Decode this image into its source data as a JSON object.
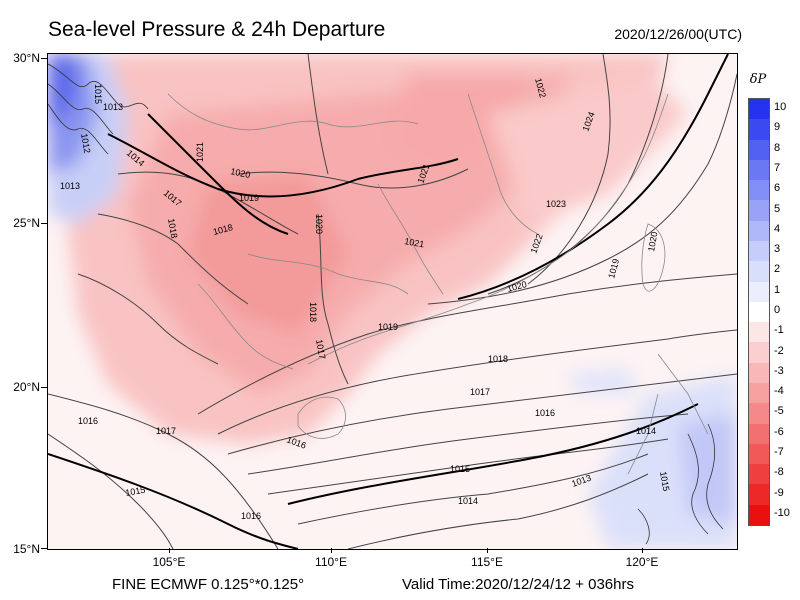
{
  "title": "Sea-level Pressure & 24h Departure",
  "datetime": "2020/12/26/00(UTC)",
  "footer": {
    "model": "FINE ECMWF 0.125°*0.125°",
    "valid": "Valid Time:2020/12/24/12 + 036hrs"
  },
  "axes": {
    "lat_labels": [
      "30°N",
      "25°N",
      "20°N",
      "15°N"
    ],
    "lon_labels": [
      "105°E",
      "110°E",
      "115°E",
      "120°E"
    ]
  },
  "colorbar": {
    "title": "δP",
    "labels": [
      "10",
      "9",
      "8",
      "7",
      "6",
      "5",
      "4",
      "3",
      "2",
      "1",
      "0",
      "-1",
      "-2",
      "-3",
      "-4",
      "-5",
      "-6",
      "-7",
      "-8",
      "-9",
      "-10"
    ],
    "colors": [
      "#2433f0",
      "#3a49f0",
      "#5261f2",
      "#6a78f3",
      "#818ef5",
      "#98a3f7",
      "#afb8f8",
      "#c5cdfa",
      "#d9defb",
      "#ebeefd",
      "#ffffff",
      "#fde6e6",
      "#fbcfcf",
      "#f9b8b8",
      "#f7a0a0",
      "#f58888",
      "#f37070",
      "#f15858",
      "#ef4040",
      "#ed2828",
      "#eb1010"
    ]
  },
  "contour_labels": [
    "1015",
    "1013",
    "1014",
    "1012",
    "1013",
    "1017",
    "1021",
    "1020",
    "1019",
    "1018",
    "1018",
    "1020",
    "1021",
    "1022",
    "1024",
    "1023",
    "1022",
    "1021",
    "1019",
    "1020",
    "1020",
    "1018",
    "1017",
    "1019",
    "1018",
    "1017",
    "1016",
    "1017",
    "1016",
    "1016",
    "1015",
    "1015",
    "1014",
    "1013",
    "1014",
    "1015",
    "1016"
  ]
}
